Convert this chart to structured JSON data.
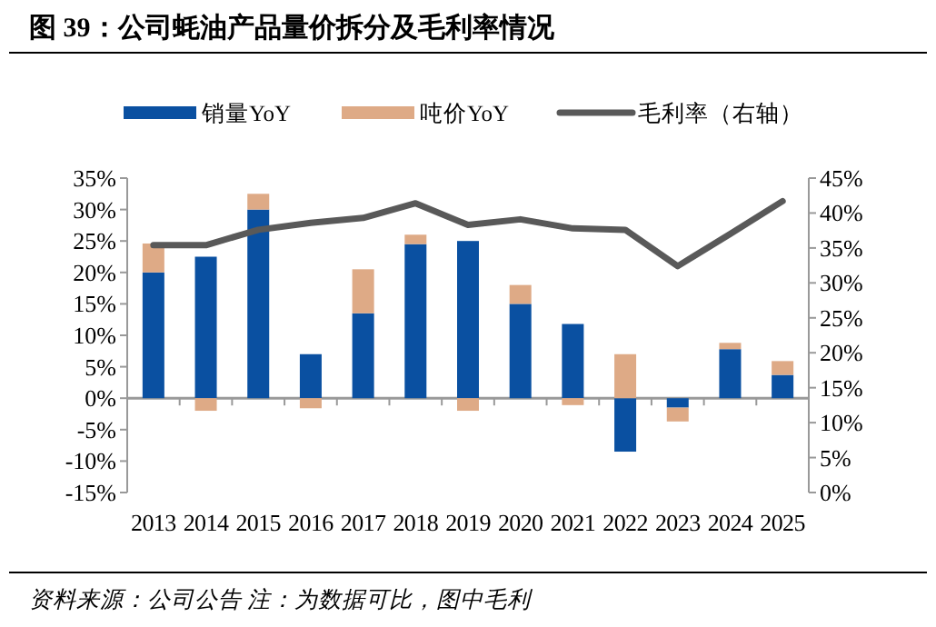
{
  "chart_data": {
    "type": "bar",
    "stacked": true,
    "legend": "top",
    "title": "图 39：公司蚝油产品量价拆分及毛利率情况",
    "annotations": [
      "资料来源：公司公告 注：为数据可比，图中毛利"
    ],
    "categories": [
      "2013",
      "2014",
      "2015",
      "2016",
      "2017",
      "2018",
      "2019",
      "2020",
      "2021",
      "2022",
      "2023",
      "2024",
      "2025"
    ],
    "series": [
      {
        "name": "销量YoY",
        "color": "#0a50a1",
        "values": [
          20,
          22.5,
          30,
          7,
          13.5,
          24.5,
          25,
          15,
          11.8,
          -8.5,
          -1.5,
          7.8,
          3.7
        ]
      },
      {
        "name": "吨价YoY",
        "color": "#deaa86",
        "values": [
          4.6,
          -2,
          2.5,
          -1.6,
          7,
          1.5,
          -2,
          3,
          -1.1,
          7,
          -2.2,
          1,
          2.2
        ]
      },
      {
        "name": "毛利率（右轴）",
        "type": "line",
        "axis": "y2",
        "color": "#595959",
        "values": [
          35.4,
          35.4,
          37.6,
          38.6,
          39.3,
          41.4,
          38.3,
          39.1,
          37.8,
          37.6,
          32.4,
          37,
          41.7
        ]
      }
    ],
    "ylim": [
      -15,
      35
    ],
    "yticks": [
      {
        "value": -15,
        "label": "-15%"
      },
      {
        "value": -10,
        "label": "-10%"
      },
      {
        "value": -5,
        "label": "-5%"
      },
      {
        "value": 0,
        "label": "0%"
      },
      {
        "value": 5,
        "label": "5%"
      },
      {
        "value": 10,
        "label": "10%"
      },
      {
        "value": 15,
        "label": "15%"
      },
      {
        "value": 20,
        "label": "20%"
      },
      {
        "value": 25,
        "label": "25%"
      },
      {
        "value": 30,
        "label": "30%"
      },
      {
        "value": 35,
        "label": "35%"
      }
    ],
    "y2lim": [
      0,
      45
    ],
    "y2ticks": [
      {
        "value": 0,
        "label": "0%"
      },
      {
        "value": 5,
        "label": "5%"
      },
      {
        "value": 10,
        "label": "10%"
      },
      {
        "value": 15,
        "label": "15%"
      },
      {
        "value": 20,
        "label": "20%"
      },
      {
        "value": 25,
        "label": "25%"
      },
      {
        "value": 30,
        "label": "30%"
      },
      {
        "value": 35,
        "label": "35%"
      },
      {
        "value": 40,
        "label": "40%"
      },
      {
        "value": 45,
        "label": "45%"
      }
    ]
  }
}
